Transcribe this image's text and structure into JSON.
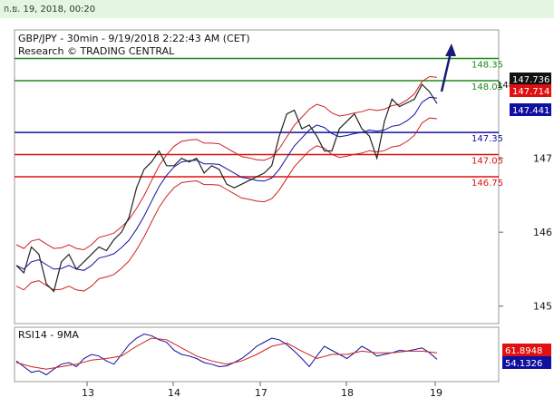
{
  "header": {
    "timestamp": "ก.ย. 19, 2018, 00:20"
  },
  "chart_data": {
    "type": "line",
    "title": "GBP/JPY - 30min - 9/19/2018 2:22:43 AM (CET)",
    "subtitle": "Research © TRADING CENTRAL",
    "price_axis": {
      "ticks": [
        145,
        146,
        147
      ],
      "range": [
        144.8,
        148.7
      ],
      "extra_tick_label": "148"
    },
    "time_labels": [
      "13",
      "14",
      "17",
      "18",
      "19"
    ],
    "levels": [
      {
        "value": 148.35,
        "label": "148.35",
        "color": "#1a8a1a"
      },
      {
        "value": 148.05,
        "label": "148.05",
        "color": "#1a8a1a"
      },
      {
        "value": 147.35,
        "label": "147.35",
        "color": "#1010a0"
      },
      {
        "value": 147.05,
        "label": "147.05",
        "color": "#e01010"
      },
      {
        "value": 146.75,
        "label": "146.75",
        "color": "#e01010"
      }
    ],
    "price_badges": [
      {
        "value": 147.736,
        "label": "147.736",
        "bg": "#111111"
      },
      {
        "value": 147.714,
        "label": "147.714",
        "bg": "#e01010"
      },
      {
        "value": 147.441,
        "label": "147.441",
        "bg": "#1010a0"
      }
    ],
    "price_series": [
      [
        0,
        145.55
      ],
      [
        5,
        145.45
      ],
      [
        10,
        145.8
      ],
      [
        15,
        145.7
      ],
      [
        20,
        145.3
      ],
      [
        25,
        145.2
      ],
      [
        30,
        145.6
      ],
      [
        35,
        145.7
      ],
      [
        40,
        145.5
      ],
      [
        45,
        145.6
      ],
      [
        50,
        145.7
      ],
      [
        55,
        145.8
      ],
      [
        60,
        145.75
      ],
      [
        65,
        145.9
      ],
      [
        70,
        146.0
      ],
      [
        75,
        146.2
      ],
      [
        80,
        146.6
      ],
      [
        85,
        146.85
      ],
      [
        90,
        146.95
      ],
      [
        95,
        147.1
      ],
      [
        100,
        146.9
      ],
      [
        105,
        146.9
      ],
      [
        110,
        147.0
      ],
      [
        115,
        146.95
      ],
      [
        120,
        147.0
      ],
      [
        125,
        146.8
      ],
      [
        130,
        146.9
      ],
      [
        135,
        146.85
      ],
      [
        140,
        146.65
      ],
      [
        145,
        146.6
      ],
      [
        150,
        146.65
      ],
      [
        155,
        146.7
      ],
      [
        160,
        146.75
      ],
      [
        165,
        146.8
      ],
      [
        170,
        146.9
      ],
      [
        175,
        147.3
      ],
      [
        180,
        147.6
      ],
      [
        185,
        147.65
      ],
      [
        190,
        147.4
      ],
      [
        195,
        147.45
      ],
      [
        200,
        147.3
      ],
      [
        205,
        147.1
      ],
      [
        210,
        147.1
      ],
      [
        215,
        147.4
      ],
      [
        220,
        147.5
      ],
      [
        225,
        147.6
      ],
      [
        230,
        147.4
      ],
      [
        235,
        147.3
      ],
      [
        240,
        147.0
      ],
      [
        245,
        147.5
      ],
      [
        250,
        147.8
      ],
      [
        255,
        147.7
      ],
      [
        260,
        147.75
      ],
      [
        265,
        147.8
      ],
      [
        270,
        148.0
      ],
      [
        275,
        147.9
      ],
      [
        280,
        147.74
      ]
    ],
    "rsi_panel": {
      "label": "RSI14 - 9MA",
      "badges": [
        {
          "label": "61.8948",
          "bg": "#e01010"
        },
        {
          "label": "54.1326",
          "bg": "#1010a0"
        }
      ],
      "rsi": [
        [
          0,
          52
        ],
        [
          5,
          45
        ],
        [
          10,
          38
        ],
        [
          15,
          40
        ],
        [
          20,
          35
        ],
        [
          25,
          42
        ],
        [
          30,
          48
        ],
        [
          35,
          50
        ],
        [
          40,
          45
        ],
        [
          45,
          55
        ],
        [
          50,
          60
        ],
        [
          55,
          58
        ],
        [
          60,
          52
        ],
        [
          65,
          48
        ],
        [
          70,
          60
        ],
        [
          75,
          72
        ],
        [
          80,
          80
        ],
        [
          85,
          85
        ],
        [
          90,
          83
        ],
        [
          95,
          78
        ],
        [
          100,
          75
        ],
        [
          105,
          65
        ],
        [
          110,
          60
        ],
        [
          115,
          58
        ],
        [
          120,
          55
        ],
        [
          125,
          50
        ],
        [
          130,
          48
        ],
        [
          135,
          45
        ],
        [
          140,
          46
        ],
        [
          145,
          50
        ],
        [
          150,
          55
        ],
        [
          155,
          62
        ],
        [
          160,
          70
        ],
        [
          165,
          75
        ],
        [
          170,
          80
        ],
        [
          175,
          78
        ],
        [
          180,
          72
        ],
        [
          185,
          64
        ],
        [
          190,
          55
        ],
        [
          195,
          45
        ],
        [
          200,
          58
        ],
        [
          205,
          70
        ],
        [
          210,
          65
        ],
        [
          215,
          60
        ],
        [
          220,
          55
        ],
        [
          225,
          62
        ],
        [
          230,
          70
        ],
        [
          235,
          65
        ],
        [
          240,
          58
        ],
        [
          245,
          60
        ],
        [
          250,
          62
        ],
        [
          255,
          65
        ],
        [
          260,
          64
        ],
        [
          265,
          66
        ],
        [
          270,
          68
        ],
        [
          275,
          62
        ],
        [
          280,
          54
        ]
      ],
      "ma": [
        [
          0,
          50
        ],
        [
          10,
          45
        ],
        [
          20,
          42
        ],
        [
          30,
          45
        ],
        [
          40,
          48
        ],
        [
          50,
          53
        ],
        [
          60,
          55
        ],
        [
          70,
          58
        ],
        [
          80,
          70
        ],
        [
          90,
          80
        ],
        [
          100,
          78
        ],
        [
          110,
          68
        ],
        [
          120,
          58
        ],
        [
          130,
          52
        ],
        [
          140,
          48
        ],
        [
          150,
          52
        ],
        [
          160,
          60
        ],
        [
          170,
          70
        ],
        [
          180,
          74
        ],
        [
          190,
          64
        ],
        [
          200,
          55
        ],
        [
          210,
          60
        ],
        [
          220,
          60
        ],
        [
          230,
          64
        ],
        [
          240,
          62
        ],
        [
          250,
          62
        ],
        [
          260,
          64
        ],
        [
          270,
          64
        ],
        [
          280,
          62
        ]
      ]
    }
  }
}
